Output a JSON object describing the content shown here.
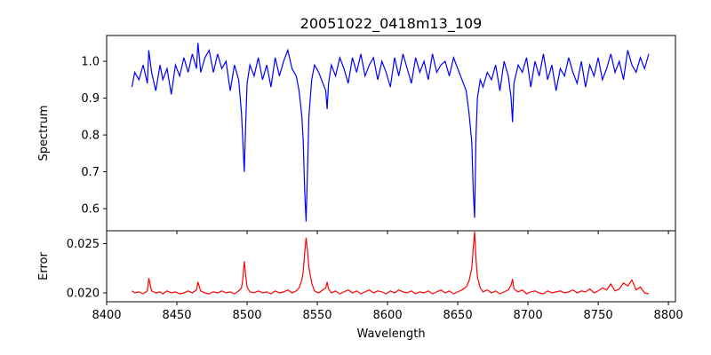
{
  "chart_data": [
    {
      "type": "line",
      "panel": "spectrum",
      "title": "20051022_0418m13_109",
      "ylabel": "Spectrum",
      "xlabel": "",
      "xlim": [
        8400,
        8805
      ],
      "ylim": [
        0.54,
        1.07
      ],
      "yticks": [
        "0.6",
        "0.7",
        "0.8",
        "0.9",
        "1.0"
      ],
      "series": [
        {
          "color": "#0000ff",
          "x": [
            8418,
            8420,
            8423,
            8426,
            8429,
            8430,
            8432,
            8435,
            8438,
            8440,
            8443,
            8446,
            8449,
            8452,
            8455,
            8458,
            8461,
            8464,
            8465,
            8467,
            8470,
            8473,
            8476,
            8479,
            8482,
            8485,
            8488,
            8491,
            8494,
            8496,
            8497,
            8498,
            8499,
            8500,
            8502,
            8505,
            8508,
            8511,
            8514,
            8517,
            8520,
            8523,
            8526,
            8529,
            8532,
            8535,
            8537,
            8539,
            8540,
            8541,
            8542,
            8543,
            8544,
            8546,
            8548,
            8551,
            8554,
            8556,
            8557,
            8558,
            8560,
            8563,
            8566,
            8569,
            8572,
            8575,
            8578,
            8581,
            8584,
            8587,
            8590,
            8593,
            8596,
            8599,
            8602,
            8605,
            8608,
            8611,
            8614,
            8617,
            8620,
            8623,
            8626,
            8629,
            8632,
            8635,
            8638,
            8641,
            8644,
            8647,
            8650,
            8653,
            8656,
            8658,
            8660,
            8661,
            8662,
            8663,
            8664,
            8666,
            8668,
            8671,
            8674,
            8677,
            8680,
            8683,
            8686,
            8688,
            8689,
            8690,
            8693,
            8696,
            8699,
            8702,
            8705,
            8708,
            8711,
            8714,
            8717,
            8720,
            8723,
            8726,
            8729,
            8732,
            8735,
            8738,
            8741,
            8744,
            8747,
            8750,
            8753,
            8756,
            8759,
            8762,
            8765,
            8768,
            8771,
            8774,
            8777,
            8780,
            8783,
            8786
          ],
          "y": [
            0.93,
            0.97,
            0.95,
            0.99,
            0.94,
            1.03,
            0.97,
            0.92,
            0.99,
            0.95,
            0.98,
            0.91,
            0.99,
            0.96,
            1.01,
            0.97,
            1.02,
            0.98,
            1.05,
            0.97,
            1.01,
            1.03,
            0.97,
            1.02,
            0.98,
            1.0,
            0.92,
            0.99,
            0.95,
            0.86,
            0.78,
            0.7,
            0.83,
            0.94,
            0.99,
            0.96,
            1.01,
            0.95,
            0.99,
            0.93,
            1.01,
            0.96,
            1.0,
            1.03,
            0.98,
            0.96,
            0.92,
            0.85,
            0.78,
            0.65,
            0.565,
            0.7,
            0.85,
            0.95,
            0.99,
            0.97,
            0.94,
            0.92,
            0.87,
            0.94,
            0.99,
            0.96,
            1.01,
            0.98,
            0.94,
            1.01,
            0.97,
            1.02,
            0.96,
            0.99,
            1.01,
            0.95,
            1.0,
            0.97,
            0.93,
            1.01,
            0.96,
            1.02,
            0.98,
            0.94,
            1.01,
            0.97,
            1.0,
            0.95,
            1.02,
            0.97,
            0.99,
            1.0,
            0.96,
            1.01,
            0.98,
            0.95,
            0.92,
            0.86,
            0.78,
            0.65,
            0.575,
            0.8,
            0.9,
            0.95,
            0.93,
            0.97,
            0.95,
            0.99,
            0.92,
            1.0,
            0.96,
            0.9,
            0.835,
            0.94,
            0.99,
            0.97,
            1.01,
            0.93,
            1.0,
            0.96,
            1.02,
            0.95,
            0.99,
            0.92,
            0.98,
            0.96,
            1.01,
            0.97,
            0.94,
            1.0,
            0.93,
            0.99,
            0.96,
            1.01,
            0.95,
            0.98,
            1.02,
            0.97,
            1.0,
            0.95,
            1.03,
            0.99,
            0.97,
            1.01,
            0.98,
            1.02
          ]
        }
      ]
    },
    {
      "type": "line",
      "panel": "error",
      "title": "",
      "ylabel": "Error",
      "xlabel": "Wavelength",
      "xlim": [
        8400,
        8805
      ],
      "ylim": [
        0.0191,
        0.0263
      ],
      "xticks": [
        "8400",
        "8450",
        "8500",
        "8550",
        "8600",
        "8650",
        "8700",
        "8750",
        "8800"
      ],
      "yticks": [
        "0.020",
        "0.025"
      ],
      "series": [
        {
          "color": "#ff0000",
          "x": [
            8418,
            8420,
            8423,
            8426,
            8429,
            8430,
            8432,
            8435,
            8438,
            8440,
            8443,
            8446,
            8449,
            8452,
            8455,
            8458,
            8461,
            8464,
            8465,
            8467,
            8470,
            8473,
            8476,
            8479,
            8482,
            8485,
            8488,
            8491,
            8494,
            8496,
            8497,
            8498,
            8499,
            8500,
            8502,
            8505,
            8508,
            8511,
            8514,
            8517,
            8520,
            8523,
            8526,
            8529,
            8532,
            8535,
            8537,
            8539,
            8540,
            8541,
            8542,
            8543,
            8544,
            8546,
            8548,
            8551,
            8554,
            8556,
            8557,
            8558,
            8560,
            8563,
            8566,
            8569,
            8572,
            8575,
            8578,
            8581,
            8584,
            8587,
            8590,
            8593,
            8596,
            8599,
            8602,
            8605,
            8608,
            8611,
            8614,
            8617,
            8620,
            8623,
            8626,
            8629,
            8632,
            8635,
            8638,
            8641,
            8644,
            8647,
            8650,
            8653,
            8656,
            8658,
            8660,
            8661,
            8662,
            8663,
            8664,
            8666,
            8668,
            8671,
            8674,
            8677,
            8680,
            8683,
            8686,
            8688,
            8689,
            8690,
            8693,
            8696,
            8699,
            8702,
            8705,
            8708,
            8711,
            8714,
            8717,
            8720,
            8723,
            8726,
            8729,
            8732,
            8735,
            8738,
            8741,
            8744,
            8747,
            8750,
            8753,
            8756,
            8759,
            8762,
            8765,
            8768,
            8771,
            8774,
            8777,
            8780,
            8783,
            8786
          ],
          "y": [
            0.0202,
            0.02,
            0.0201,
            0.0199,
            0.0202,
            0.0215,
            0.0202,
            0.02,
            0.0201,
            0.0199,
            0.0202,
            0.02,
            0.0201,
            0.0199,
            0.02,
            0.0202,
            0.02,
            0.0203,
            0.0211,
            0.0202,
            0.02,
            0.0199,
            0.0201,
            0.02,
            0.0202,
            0.02,
            0.0201,
            0.0199,
            0.0202,
            0.0205,
            0.0214,
            0.0232,
            0.0218,
            0.0206,
            0.0201,
            0.02,
            0.0202,
            0.02,
            0.0201,
            0.0199,
            0.0202,
            0.02,
            0.0201,
            0.0203,
            0.02,
            0.0202,
            0.0205,
            0.0213,
            0.0222,
            0.024,
            0.0256,
            0.0243,
            0.0226,
            0.021,
            0.0202,
            0.02,
            0.0203,
            0.0205,
            0.0211,
            0.0204,
            0.02,
            0.0202,
            0.0199,
            0.0201,
            0.0203,
            0.02,
            0.0202,
            0.0199,
            0.0201,
            0.0203,
            0.02,
            0.0202,
            0.0201,
            0.0199,
            0.0202,
            0.02,
            0.0203,
            0.0201,
            0.02,
            0.0202,
            0.0199,
            0.0201,
            0.02,
            0.0202,
            0.0199,
            0.0201,
            0.0203,
            0.02,
            0.0202,
            0.0199,
            0.0201,
            0.0203,
            0.0206,
            0.0212,
            0.0225,
            0.0245,
            0.0262,
            0.0234,
            0.0216,
            0.0205,
            0.0201,
            0.0203,
            0.02,
            0.0202,
            0.0199,
            0.0201,
            0.0203,
            0.0208,
            0.0214,
            0.0204,
            0.0201,
            0.0203,
            0.0199,
            0.0201,
            0.0202,
            0.02,
            0.0199,
            0.0202,
            0.02,
            0.0201,
            0.0202,
            0.02,
            0.0201,
            0.0203,
            0.02,
            0.0202,
            0.0201,
            0.0204,
            0.02,
            0.0202,
            0.0205,
            0.0203,
            0.0209,
            0.0202,
            0.0204,
            0.021,
            0.0207,
            0.0213,
            0.0203,
            0.0206,
            0.02,
            0.0199
          ]
        }
      ]
    }
  ]
}
